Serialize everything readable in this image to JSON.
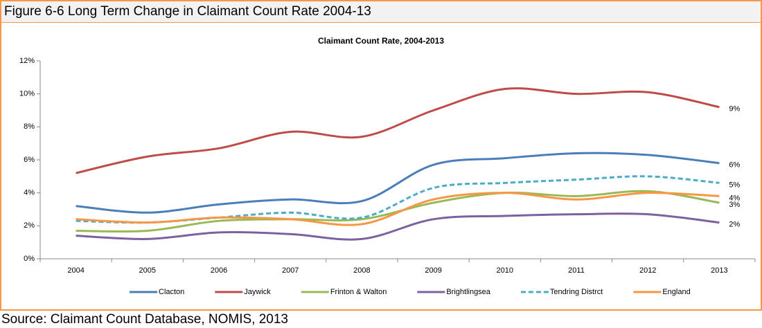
{
  "figure_title": "Figure 6-6 Long Term Change in Claimant Count Rate 2004-13",
  "source": "Source: Claimant Count Database, NOMIS, 2013",
  "chart_data": {
    "type": "line",
    "title": "Claimant Count Rate, 2004-2013",
    "categories": [
      "2004",
      "2005",
      "2006",
      "2007",
      "2008",
      "2009",
      "2010",
      "2011",
      "2012",
      "2013"
    ],
    "ylim": [
      0,
      12
    ],
    "yticks": [
      {
        "value": 0,
        "label": "0%"
      },
      {
        "value": 2,
        "label": "2%"
      },
      {
        "value": 4,
        "label": "4%"
      },
      {
        "value": 6,
        "label": "6%"
      },
      {
        "value": 8,
        "label": "8%"
      },
      {
        "value": 10,
        "label": "10%"
      },
      {
        "value": 12,
        "label": "12%"
      }
    ],
    "grid": false,
    "legend": "bottom",
    "series": [
      {
        "name": "Clacton",
        "color": "#4a7ebb",
        "values": [
          3.2,
          2.8,
          3.3,
          3.6,
          3.5,
          5.7,
          6.1,
          6.4,
          6.3,
          5.8
        ],
        "end_label": "6%"
      },
      {
        "name": "Jaywick",
        "color": "#be4b48",
        "values": [
          5.2,
          6.2,
          6.7,
          7.7,
          7.4,
          9.0,
          10.3,
          10.0,
          10.1,
          9.2
        ],
        "end_label": "9%"
      },
      {
        "name": "Frinton & Walton",
        "color": "#98b954",
        "values": [
          1.7,
          1.7,
          2.3,
          2.4,
          2.4,
          3.4,
          4.0,
          3.8,
          4.1,
          3.4
        ],
        "end_label": "3%"
      },
      {
        "name": "Brightlingsea",
        "color": "#7d60a0",
        "values": [
          1.4,
          1.2,
          1.6,
          1.5,
          1.2,
          2.4,
          2.6,
          2.7,
          2.7,
          2.2
        ],
        "end_label": "2%"
      },
      {
        "name": "Tendring Distrct",
        "color": "#4bacc6",
        "dashed": true,
        "values": [
          2.3,
          2.2,
          2.5,
          2.8,
          2.5,
          4.3,
          4.6,
          4.8,
          5.0,
          4.6
        ],
        "end_label": "5%"
      },
      {
        "name": "England",
        "color": "#f79646",
        "values": [
          2.4,
          2.2,
          2.5,
          2.4,
          2.1,
          3.6,
          4.0,
          3.6,
          4.0,
          3.8
        ],
        "end_label": "4%"
      }
    ]
  }
}
